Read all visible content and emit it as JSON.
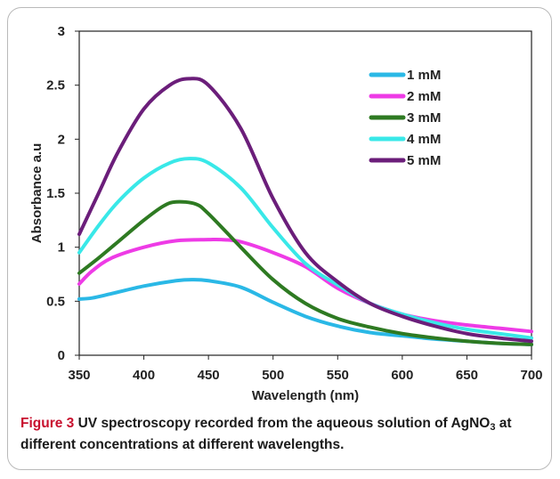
{
  "chart_data": {
    "type": "line",
    "xlabel": "Wavelength (nm)",
    "ylabel": "Absorbance a.u",
    "xlim": [
      350,
      700
    ],
    "ylim": [
      0,
      3
    ],
    "x_ticks": [
      "350",
      "400",
      "450",
      "500",
      "550",
      "600",
      "650",
      "700"
    ],
    "y_ticks": [
      "0",
      "0.5",
      "1",
      "1.5",
      "2",
      "2.5",
      "3"
    ],
    "grid": false,
    "legend_position": "top-right",
    "series": [
      {
        "name": "1 mM",
        "color": "#2ab8e6",
        "x": [
          350,
          360,
          375,
          400,
          425,
          437,
          450,
          475,
          500,
          525,
          550,
          575,
          600,
          625,
          650,
          675,
          700
        ],
        "y": [
          0.52,
          0.53,
          0.57,
          0.64,
          0.69,
          0.7,
          0.69,
          0.63,
          0.49,
          0.36,
          0.27,
          0.21,
          0.18,
          0.15,
          0.13,
          0.11,
          0.1
        ]
      },
      {
        "name": "2 mM",
        "color": "#ee3be6",
        "x": [
          350,
          360,
          375,
          400,
          425,
          450,
          460,
          475,
          500,
          525,
          550,
          575,
          600,
          625,
          650,
          675,
          700
        ],
        "y": [
          0.66,
          0.78,
          0.9,
          1.0,
          1.06,
          1.07,
          1.07,
          1.05,
          0.95,
          0.82,
          0.62,
          0.48,
          0.38,
          0.32,
          0.28,
          0.25,
          0.22
        ]
      },
      {
        "name": "3 mM",
        "color": "#2e7a22",
        "x": [
          350,
          365,
          380,
          400,
          415,
          425,
          440,
          450,
          475,
          500,
          525,
          550,
          575,
          600,
          625,
          650,
          675,
          700
        ],
        "y": [
          0.76,
          0.9,
          1.05,
          1.25,
          1.38,
          1.42,
          1.4,
          1.31,
          1.0,
          0.7,
          0.48,
          0.34,
          0.26,
          0.2,
          0.16,
          0.13,
          0.11,
          0.1
        ]
      },
      {
        "name": "4 mM",
        "color": "#39e8e8",
        "x": [
          350,
          365,
          380,
          400,
          420,
          435,
          450,
          475,
          500,
          525,
          550,
          575,
          600,
          625,
          650,
          675,
          700
        ],
        "y": [
          0.95,
          1.2,
          1.42,
          1.64,
          1.78,
          1.82,
          1.78,
          1.55,
          1.18,
          0.85,
          0.65,
          0.48,
          0.38,
          0.3,
          0.24,
          0.2,
          0.16
        ]
      },
      {
        "name": "5 mM",
        "color": "#6b1e7a",
        "x": [
          350,
          365,
          380,
          400,
          420,
          435,
          450,
          475,
          500,
          525,
          550,
          575,
          600,
          625,
          650,
          675,
          700
        ],
        "y": [
          1.12,
          1.5,
          1.88,
          2.28,
          2.5,
          2.56,
          2.5,
          2.1,
          1.45,
          0.95,
          0.68,
          0.48,
          0.36,
          0.27,
          0.2,
          0.16,
          0.13
        ]
      }
    ]
  },
  "caption": {
    "label": "Figure 3",
    "text_part1": " UV spectroscopy recorded from the aqueous solution of AgNO",
    "subscript": "3",
    "text_part2": " at different concentrations at different wavelengths."
  }
}
